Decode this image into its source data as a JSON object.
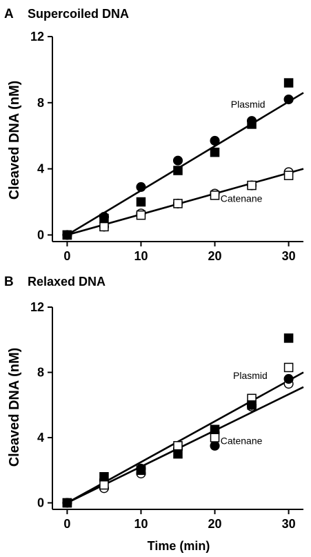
{
  "chart_data": [
    {
      "type": "scatter",
      "panel_label": "A",
      "title": "Supercoiled DNA",
      "xlabel": "",
      "ylabel": "Cleaved DNA (nM)",
      "xlim": [
        -2,
        32
      ],
      "ylim": [
        -0.4,
        12
      ],
      "xticks": [
        0,
        10,
        20,
        30
      ],
      "yticks": [
        0,
        4,
        8,
        12
      ],
      "grid": false,
      "series": [
        {
          "label": "Plasmid",
          "marker": "filled-circle",
          "x": [
            0,
            5,
            10,
            15,
            20,
            25,
            30
          ],
          "y": [
            0,
            1.1,
            2.9,
            4.5,
            5.7,
            6.9,
            8.2
          ]
        },
        {
          "label": "Plasmid",
          "marker": "filled-square",
          "x": [
            0,
            5,
            10,
            15,
            20,
            25,
            30
          ],
          "y": [
            0,
            1.0,
            2.0,
            3.9,
            5.0,
            6.7,
            9.2
          ]
        },
        {
          "label": "Catenane",
          "marker": "open-circle",
          "x": [
            0,
            5,
            10,
            15,
            20,
            25,
            30
          ],
          "y": [
            0,
            0.5,
            1.3,
            1.9,
            2.5,
            3.0,
            3.8
          ]
        },
        {
          "label": "Catenane",
          "marker": "open-square",
          "x": [
            0,
            5,
            10,
            15,
            20,
            25,
            30
          ],
          "y": [
            0,
            0.5,
            1.2,
            1.9,
            2.4,
            3.0,
            3.6
          ]
        }
      ],
      "fits": [
        {
          "x": [
            0,
            32
          ],
          "y": [
            0,
            8.6
          ]
        },
        {
          "x": [
            0,
            32
          ],
          "y": [
            0,
            4.0
          ]
        }
      ],
      "annotations": [
        {
          "text": "Plasmid",
          "x": 24.5,
          "y": 7.7
        },
        {
          "text": "Catenane",
          "x": 23.6,
          "y": 2.0
        }
      ]
    },
    {
      "type": "scatter",
      "panel_label": "B",
      "title": "Relaxed DNA",
      "xlabel": "Time (min)",
      "ylabel": "Cleaved DNA (nM)",
      "xlim": [
        -2,
        32
      ],
      "ylim": [
        -0.4,
        12
      ],
      "xticks": [
        0,
        10,
        20,
        30
      ],
      "yticks": [
        0,
        4,
        8,
        12
      ],
      "grid": false,
      "series": [
        {
          "label": "Plasmid",
          "marker": "filled-circle",
          "x": [
            0,
            5,
            10,
            15,
            20,
            25,
            30
          ],
          "y": [
            0,
            1.4,
            2.1,
            3.3,
            3.5,
            6.0,
            7.6
          ]
        },
        {
          "label": "Plasmid",
          "marker": "filled-square",
          "x": [
            0,
            5,
            10,
            15,
            20,
            25,
            30
          ],
          "y": [
            0,
            1.6,
            2.0,
            3.0,
            4.5,
            6.0,
            10.1
          ]
        },
        {
          "label": "Catenane",
          "marker": "open-circle",
          "x": [
            0,
            5,
            10,
            15,
            20,
            25,
            30
          ],
          "y": [
            0,
            0.9,
            1.8,
            3.3,
            4.3,
            5.9,
            7.3
          ]
        },
        {
          "label": "Catenane",
          "marker": "open-square",
          "x": [
            0,
            5,
            10,
            15,
            20,
            25,
            30
          ],
          "y": [
            0,
            1.1,
            2.0,
            3.5,
            4.0,
            6.4,
            8.3
          ]
        }
      ],
      "fits": [
        {
          "x": [
            0,
            32
          ],
          "y": [
            0,
            8.0
          ]
        },
        {
          "x": [
            0,
            32
          ],
          "y": [
            0,
            7.1
          ]
        }
      ],
      "annotations": [
        {
          "text": "Plasmid",
          "x": 24.8,
          "y": 7.6
        },
        {
          "text": "Catenane",
          "x": 23.6,
          "y": 3.6
        }
      ]
    }
  ]
}
